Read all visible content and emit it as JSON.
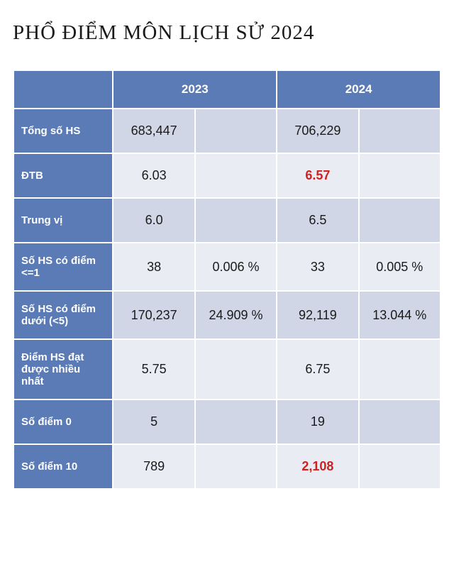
{
  "title": "PHỔ ĐIỂM MÔN LỊCH SỬ 2024",
  "headers": {
    "y2023": "2023",
    "y2024": "2024"
  },
  "rows": [
    {
      "label": "Tổng số HS",
      "v2023": "683,447",
      "p2023": "",
      "v2024": "706,229",
      "p2024": "",
      "h2023": false,
      "h2024": false
    },
    {
      "label": "ĐTB",
      "v2023": "6.03",
      "p2023": "",
      "v2024": "6.57",
      "p2024": "",
      "h2023": false,
      "h2024": true
    },
    {
      "label": "Trung vị",
      "v2023": "6.0",
      "p2023": "",
      "v2024": "6.5",
      "p2024": "",
      "h2023": false,
      "h2024": false
    },
    {
      "label": "Số HS có điểm <=1",
      "v2023": "38",
      "p2023": "0.006 %",
      "v2024": "33",
      "p2024": "0.005 %",
      "h2023": false,
      "h2024": false
    },
    {
      "label": "Số HS có điểm dưới (<5)",
      "v2023": "170,237",
      "p2023": "24.909 %",
      "v2024": "92,119",
      "p2024": "13.044 %",
      "h2023": false,
      "h2024": false
    },
    {
      "label": "Điểm HS đạt được nhiều nhất",
      "v2023": "5.75",
      "p2023": "",
      "v2024": "6.75",
      "p2024": "",
      "h2023": false,
      "h2024": false
    },
    {
      "label": "Số điểm 0",
      "v2023": "5",
      "p2023": "",
      "v2024": "19",
      "p2024": "",
      "h2023": false,
      "h2024": false
    },
    {
      "label": "Số điểm 10",
      "v2023": "789",
      "p2023": "",
      "v2024": "2,108",
      "p2024": "",
      "h2023": false,
      "h2024": true
    }
  ],
  "colors": {
    "header_bg": "#5a7bb5",
    "row_odd_bg": "#d0d6e6",
    "row_even_bg": "#e9ecf3",
    "highlight": "#d02020",
    "text": "#1a1a1a",
    "border": "#ffffff"
  }
}
